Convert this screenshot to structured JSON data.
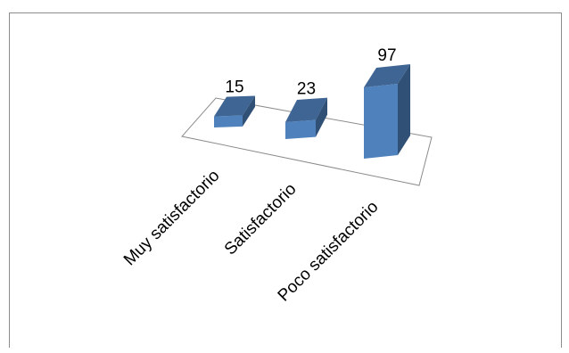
{
  "chart_data": {
    "type": "bar",
    "title": "",
    "xlabel": "",
    "ylabel": "",
    "categories": [
      "Muy satisfactorio",
      "Satisfactorio",
      "Poco satisfactorio"
    ],
    "values": [
      15,
      23,
      97
    ],
    "grid": false,
    "legend": "none",
    "bar_color": "#4f81bd"
  }
}
